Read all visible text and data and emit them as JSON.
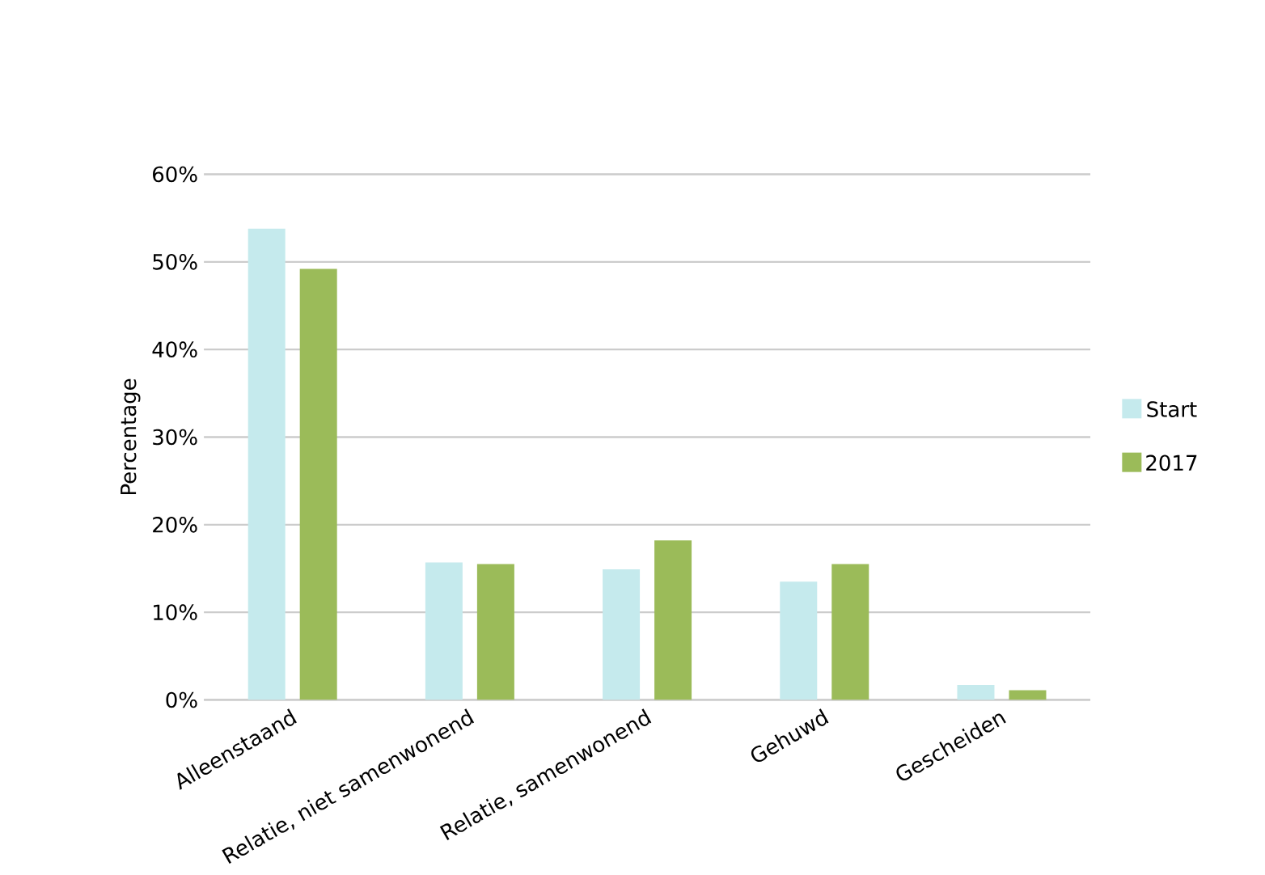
{
  "chart_data": {
    "type": "bar",
    "ylabel": "Percentage",
    "categories": [
      "Alleenstaand",
      "Relatie, niet samenwonend",
      "Relatie, samenwonend",
      "Gehuwd",
      "Gescheiden"
    ],
    "series": [
      {
        "name": "Start",
        "color": "#c5eaed",
        "values": [
          53.8,
          15.7,
          14.9,
          13.5,
          1.7
        ]
      },
      {
        "name": "2017",
        "color": "#9bbb59",
        "values": [
          49.2,
          15.5,
          18.2,
          15.5,
          1.1
        ]
      }
    ],
    "ylim": [
      0,
      60
    ],
    "yticks": [
      {
        "value": 0,
        "label": "0%"
      },
      {
        "value": 10,
        "label": "10%"
      },
      {
        "value": 20,
        "label": "20%"
      },
      {
        "value": 30,
        "label": "30%"
      },
      {
        "value": 40,
        "label": "40%"
      },
      {
        "value": 50,
        "label": "50%"
      },
      {
        "value": 60,
        "label": "60%"
      }
    ],
    "grid": "y",
    "legend": "right"
  }
}
